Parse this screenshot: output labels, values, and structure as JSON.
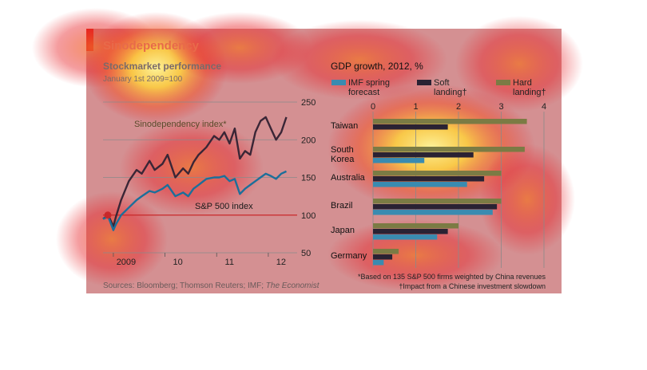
{
  "heading": "Sinodependency",
  "left": {
    "title": "Stockmarket performance",
    "subtitle": "January 1st 2009=100",
    "annotations": [
      "Sinodependency index*",
      "S&P 500 index"
    ],
    "chart_data": {
      "type": "line",
      "xlabel": "",
      "ylabel": "",
      "x_ticks": [
        "2009",
        "10",
        "11",
        "12"
      ],
      "x_tick_positions": [
        2009.0,
        2010.0,
        2011.0,
        2012.0
      ],
      "xlim": [
        2008.8,
        2012.45
      ],
      "ylim": [
        50,
        250
      ],
      "y_ticks": [
        50,
        100,
        150,
        200,
        250
      ],
      "y_axis_side": "right",
      "baseline": 100,
      "series": [
        {
          "name": "Sinodependency index*",
          "color": "#3a2636",
          "x": [
            2008.8,
            2008.9,
            2009.0,
            2009.05,
            2009.15,
            2009.3,
            2009.45,
            2009.55,
            2009.7,
            2009.8,
            2009.95,
            2010.05,
            2010.2,
            2010.35,
            2010.45,
            2010.55,
            2010.65,
            2010.8,
            2010.95,
            2011.05,
            2011.15,
            2011.25,
            2011.35,
            2011.45,
            2011.55,
            2011.65,
            2011.75,
            2011.85,
            2011.95,
            2012.05,
            2012.15,
            2012.25,
            2012.35
          ],
          "y": [
            95,
            100,
            85,
            98,
            120,
            145,
            160,
            155,
            172,
            160,
            168,
            180,
            150,
            162,
            155,
            170,
            180,
            190,
            205,
            200,
            210,
            195,
            215,
            175,
            185,
            180,
            210,
            225,
            230,
            215,
            200,
            210,
            230
          ]
        },
        {
          "name": "S&P 500 index",
          "color": "#1c6f9a",
          "x": [
            2008.8,
            2008.9,
            2009.0,
            2009.05,
            2009.15,
            2009.3,
            2009.45,
            2009.55,
            2009.7,
            2009.8,
            2009.95,
            2010.05,
            2010.2,
            2010.35,
            2010.45,
            2010.55,
            2010.65,
            2010.8,
            2010.95,
            2011.05,
            2011.15,
            2011.25,
            2011.35,
            2011.45,
            2011.55,
            2011.65,
            2011.75,
            2011.85,
            2011.95,
            2012.05,
            2012.15,
            2012.25,
            2012.35
          ],
          "y": [
            95,
            98,
            80,
            88,
            100,
            110,
            120,
            125,
            132,
            130,
            135,
            140,
            125,
            130,
            125,
            135,
            140,
            148,
            150,
            150,
            152,
            145,
            148,
            128,
            135,
            140,
            145,
            150,
            155,
            152,
            148,
            155,
            158
          ]
        }
      ]
    }
  },
  "right": {
    "title": "GDP growth, 2012, %",
    "chart_data": {
      "type": "bar",
      "orientation": "horizontal",
      "title": "GDP growth, 2012, %",
      "xlim": [
        0,
        4
      ],
      "x_ticks": [
        0,
        1,
        2,
        3,
        4
      ],
      "axis_position": "top",
      "categories": [
        "Taiwan",
        "South Korea",
        "Australia",
        "Brazil",
        "Japan",
        "Germany"
      ],
      "category_labels": [
        [
          "Taiwan"
        ],
        [
          "South",
          "Korea"
        ],
        [
          "Australia"
        ],
        [
          "Brazil"
        ],
        [
          "Japan"
        ],
        [
          "Germany"
        ]
      ],
      "series": [
        {
          "name": "Hard landing†",
          "legend_lines": [
            "Hard",
            "landing†"
          ],
          "color": "#7b7b44",
          "values": [
            3.6,
            3.55,
            3.0,
            3.0,
            2.0,
            0.6
          ]
        },
        {
          "name": "Soft landing†",
          "legend_lines": [
            "Soft",
            "landing†"
          ],
          "color": "#2a2233",
          "values": [
            1.75,
            2.35,
            2.6,
            2.9,
            1.75,
            0.45
          ]
        },
        {
          "name": "IMF spring forecast",
          "legend_lines": [
            "IMF spring",
            "forecast"
          ],
          "color": "#3a8bb0",
          "values": [
            0.0,
            1.2,
            2.2,
            2.8,
            1.5,
            0.25
          ]
        }
      ]
    },
    "footnotes": [
      "*Based on 135 S&P 500 firms weighted by China revenues",
      "†Impact from a Chinese investment slowdown"
    ]
  },
  "sources_prefix": "Sources: Bloomberg; Thomson Reuters; IMF; ",
  "sources_italic": "The Economist",
  "colors": {
    "accent": "#e3120b",
    "panel": "#c9c9c9",
    "baseline": "#c8282a",
    "heat_hot": "#ffd23c",
    "heat_warm": "#e8252a"
  }
}
